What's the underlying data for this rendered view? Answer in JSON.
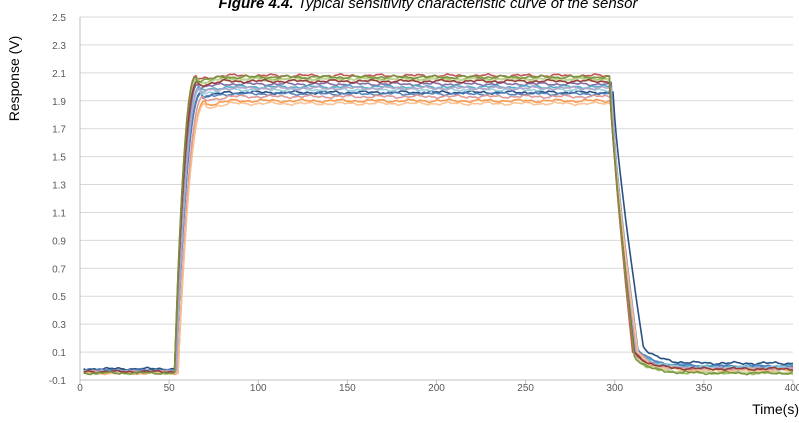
{
  "chart_data": {
    "type": "line",
    "title_label": "Figure 4.4.",
    "title_text": " Typical sensitivity characteristic curve of the sensor",
    "xlabel": "Time(s)",
    "ylabel": "Response (V)",
    "xlim": [
      0,
      400
    ],
    "ylim": [
      -0.1,
      2.5
    ],
    "x_ticks": [
      0,
      50,
      100,
      150,
      200,
      250,
      300,
      350,
      400
    ],
    "y_ticks": [
      -0.1,
      0.1,
      0.3,
      0.5,
      0.7,
      0.9,
      1.1,
      1.3,
      1.5,
      1.7,
      1.9,
      2.1,
      2.3,
      2.5
    ],
    "x_tick_labels": [
      "0",
      "50",
      "100",
      "150",
      "200",
      "250",
      "300",
      "350",
      "400"
    ],
    "y_tick_labels": [
      "-0.1",
      "0.1",
      "0.3",
      "0.5",
      "0.7",
      "0.9",
      "1.1",
      "1.3",
      "1.5",
      "1.7",
      "1.9",
      "2.1",
      "2.3",
      "2.5"
    ],
    "grid": true,
    "legend": "none",
    "series": [
      {
        "color": "#c0504d",
        "baseline": -0.04,
        "plateau": 2.08,
        "tail": -0.02,
        "rise_start": 53,
        "rise_end": 65,
        "fall_start": 297,
        "fall_end": 310
      },
      {
        "color": "#9bbb59",
        "baseline": -0.05,
        "plateau": 2.06,
        "tail": -0.05,
        "rise_start": 53,
        "rise_end": 66,
        "fall_start": 297,
        "fall_end": 311
      },
      {
        "color": "#8064a2",
        "baseline": -0.03,
        "plateau": 2.02,
        "tail": -0.01,
        "rise_start": 54,
        "rise_end": 66,
        "fall_start": 298,
        "fall_end": 311
      },
      {
        "color": "#4bacc6",
        "baseline": -0.03,
        "plateau": 2.0,
        "tail": 0.0,
        "rise_start": 54,
        "rise_end": 67,
        "fall_start": 298,
        "fall_end": 312
      },
      {
        "color": "#f79646",
        "baseline": -0.05,
        "plateau": 1.9,
        "tail": -0.03,
        "rise_start": 55,
        "rise_end": 70,
        "fall_start": 298,
        "fall_end": 313
      },
      {
        "color": "#1f497d",
        "baseline": -0.02,
        "plateau": 1.96,
        "tail": 0.02,
        "rise_start": 54,
        "rise_end": 68,
        "fall_start": 299,
        "fall_end": 316
      },
      {
        "color": "#4f81bd",
        "baseline": -0.03,
        "plateau": 1.95,
        "tail": 0.0,
        "rise_start": 54,
        "rise_end": 68,
        "fall_start": 298,
        "fall_end": 313
      },
      {
        "color": "#d99694",
        "baseline": -0.04,
        "plateau": 1.93,
        "tail": -0.02,
        "rise_start": 55,
        "rise_end": 69,
        "fall_start": 298,
        "fall_end": 313
      },
      {
        "color": "#93cddd",
        "baseline": -0.04,
        "plateau": 1.98,
        "tail": -0.01,
        "rise_start": 54,
        "rise_end": 67,
        "fall_start": 298,
        "fall_end": 312
      },
      {
        "color": "#c3d69b",
        "baseline": -0.05,
        "plateau": 2.05,
        "tail": -0.04,
        "rise_start": 53,
        "rise_end": 66,
        "fall_start": 297,
        "fall_end": 311
      },
      {
        "color": "#b3a2c7",
        "baseline": -0.04,
        "plateau": 1.99,
        "tail": -0.02,
        "rise_start": 54,
        "rise_end": 67,
        "fall_start": 298,
        "fall_end": 312
      },
      {
        "color": "#fac090",
        "baseline": -0.05,
        "plateau": 1.88,
        "tail": -0.03,
        "rise_start": 55,
        "rise_end": 70,
        "fall_start": 298,
        "fall_end": 313
      },
      {
        "color": "#953735",
        "baseline": -0.04,
        "plateau": 2.04,
        "tail": -0.02,
        "rise_start": 53,
        "rise_end": 66,
        "fall_start": 297,
        "fall_end": 311
      },
      {
        "color": "#77933c",
        "baseline": -0.05,
        "plateau": 2.07,
        "tail": -0.05,
        "rise_start": 53,
        "rise_end": 65,
        "fall_start": 297,
        "fall_end": 311
      }
    ]
  },
  "colors": {
    "grid": "#d9d9d9",
    "axis": "#bfbfbf",
    "tick_text": "#595959",
    "title_text": "#000000"
  }
}
